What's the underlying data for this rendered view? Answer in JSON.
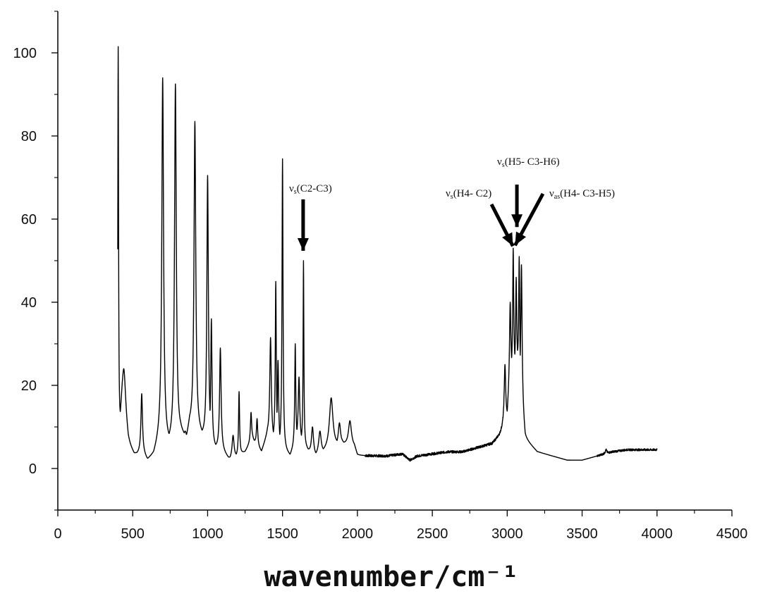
{
  "chart_data": {
    "type": "line",
    "title": "",
    "xlabel": "wavenumber/cm⁻¹",
    "ylabel": "",
    "xlim": [
      0,
      4500
    ],
    "ylim": [
      -10,
      110
    ],
    "x_ticks": [
      0,
      500,
      1000,
      1500,
      2000,
      2500,
      3000,
      3500,
      4000,
      4500
    ],
    "y_ticks": [
      0,
      20,
      40,
      60,
      80,
      100
    ],
    "x_tick_labels": [
      "0",
      "500",
      "1000",
      "1500",
      "2000",
      "2500",
      "3000",
      "3500",
      "4000",
      "4500"
    ],
    "y_tick_labels": [
      "0",
      "20",
      "40",
      "60",
      "80",
      "100"
    ],
    "grid": false,
    "legend": "none",
    "line_color": "#000000",
    "series": [
      {
        "baseline": [
          [
            400,
            4
          ],
          [
            430,
            14
          ],
          [
            470,
            5
          ],
          [
            510,
            3
          ],
          [
            560,
            4
          ],
          [
            600,
            2
          ],
          [
            640,
            3
          ],
          [
            680,
            7
          ],
          [
            740,
            6
          ],
          [
            820,
            8
          ],
          [
            860,
            7
          ],
          [
            880,
            10
          ],
          [
            950,
            8
          ],
          [
            1050,
            5
          ],
          [
            1100,
            4
          ],
          [
            1150,
            2
          ],
          [
            1250,
            4
          ],
          [
            1300,
            7
          ],
          [
            1360,
            4
          ],
          [
            1400,
            8
          ],
          [
            1480,
            5
          ],
          [
            1550,
            3
          ],
          [
            1600,
            7
          ],
          [
            1680,
            4
          ],
          [
            1720,
            3
          ],
          [
            1780,
            4
          ],
          [
            1900,
            6
          ],
          [
            1980,
            5
          ],
          [
            2000,
            3
          ],
          [
            2100,
            3
          ],
          [
            2200,
            3
          ],
          [
            2300,
            3.5
          ],
          [
            2350,
            2
          ],
          [
            2400,
            3
          ],
          [
            2500,
            3.5
          ],
          [
            2600,
            4
          ],
          [
            2700,
            4
          ],
          [
            2800,
            5
          ],
          [
            2900,
            6
          ],
          [
            2950,
            8
          ],
          [
            3000,
            12
          ],
          [
            3020,
            22
          ],
          [
            3070,
            25
          ],
          [
            3100,
            14
          ],
          [
            3120,
            7
          ],
          [
            3200,
            4
          ],
          [
            3300,
            3
          ],
          [
            3400,
            2
          ],
          [
            3500,
            2
          ],
          [
            3600,
            3
          ],
          [
            3700,
            4
          ],
          [
            3800,
            4.5
          ],
          [
            3900,
            4.5
          ],
          [
            4000,
            4.5
          ]
        ],
        "peaks": [
          [
            403,
            101.5,
            3
          ],
          [
            440,
            24,
            14
          ],
          [
            560,
            18,
            6
          ],
          [
            700,
            94,
            7
          ],
          [
            785,
            92.5,
            7
          ],
          [
            850,
            9,
            10
          ],
          [
            915,
            83.5,
            7
          ],
          [
            1000,
            70.5,
            6
          ],
          [
            1025,
            36,
            5
          ],
          [
            1085,
            29,
            6
          ],
          [
            1170,
            8,
            8
          ],
          [
            1210,
            18.5,
            4
          ],
          [
            1290,
            13.5,
            5
          ],
          [
            1330,
            12,
            5
          ],
          [
            1420,
            31.5,
            6
          ],
          [
            1455,
            45,
            4
          ],
          [
            1470,
            26,
            5
          ],
          [
            1500,
            74.5,
            4
          ],
          [
            1585,
            30,
            4
          ],
          [
            1610,
            22,
            6
          ],
          [
            1640,
            50,
            3
          ],
          [
            1700,
            10,
            8
          ],
          [
            1750,
            9,
            10
          ],
          [
            1825,
            17,
            14
          ],
          [
            1880,
            11,
            9
          ],
          [
            1950,
            11.5,
            12
          ],
          [
            2985,
            25,
            6
          ],
          [
            3020,
            40,
            5
          ],
          [
            3040,
            53,
            4
          ],
          [
            3060,
            46,
            4
          ],
          [
            3080,
            51,
            4
          ],
          [
            3095,
            49,
            5
          ],
          [
            3660,
            4.5,
            6
          ]
        ]
      }
    ],
    "annotations": [
      {
        "label": "ν",
        "sub": "s",
        "rest": "(C2-C3)",
        "x": 1640,
        "y": 50
      },
      {
        "label": "ν",
        "sub": "s",
        "rest": "(H4- C2)",
        "x": 3010,
        "y": 53
      },
      {
        "label": "ν",
        "sub": "s",
        "rest": "(H5- C3-H6)",
        "x": 3060,
        "y": 53
      },
      {
        "label": "ν",
        "sub": "as",
        "rest": "(H4- C3-H5)",
        "x": 3090,
        "y": 53
      }
    ]
  }
}
